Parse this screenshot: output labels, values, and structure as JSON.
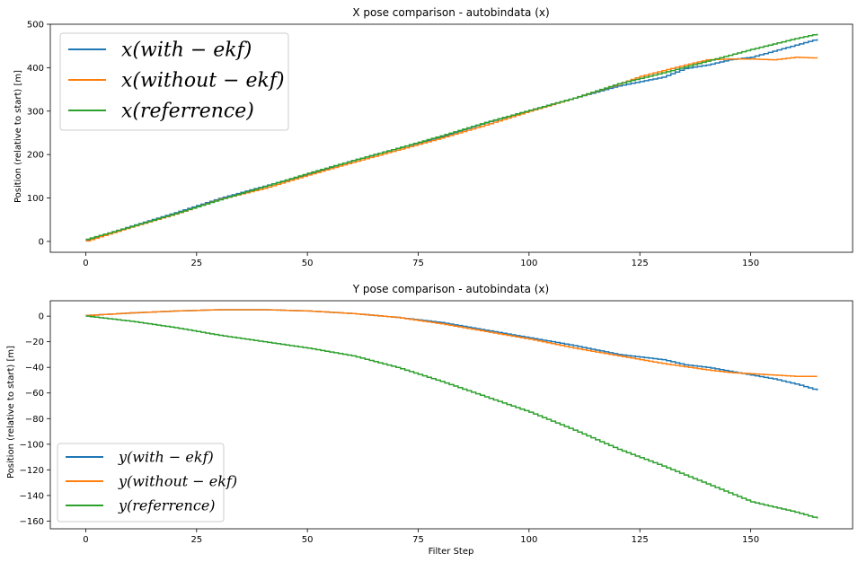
{
  "chart_data": [
    {
      "type": "line",
      "title": "X pose comparison - autobindata (x)",
      "xlabel": "",
      "ylabel": "Position (relative to start) [m]",
      "xlim": [
        -8,
        173
      ],
      "ylim": [
        -25,
        500
      ],
      "xticks": [
        0,
        25,
        50,
        75,
        100,
        125,
        150
      ],
      "yticks": [
        0,
        100,
        200,
        300,
        400,
        500
      ],
      "legend_position": "upper-left",
      "series": [
        {
          "name": "x(with − ekf)",
          "color": "#1f77b4",
          "x": [
            0,
            10,
            20,
            30,
            40,
            50,
            60,
            70,
            80,
            90,
            100,
            110,
            120,
            130,
            135,
            140,
            145,
            150,
            155,
            160,
            165
          ],
          "y": [
            3,
            35,
            66,
            99,
            127,
            155,
            186,
            214,
            241,
            273,
            302,
            330,
            358,
            378,
            398,
            406,
            418,
            424,
            438,
            452,
            466
          ]
        },
        {
          "name": "x(without − ekf)",
          "color": "#ff7f0e",
          "x": [
            0,
            10,
            20,
            30,
            40,
            50,
            60,
            70,
            80,
            90,
            100,
            110,
            120,
            125,
            130,
            135,
            140,
            145,
            150,
            155,
            160,
            165
          ],
          "y": [
            1,
            33,
            63,
            97,
            122,
            153,
            182,
            210,
            238,
            268,
            300,
            330,
            362,
            380,
            393,
            406,
            418,
            420,
            420,
            418,
            424,
            422
          ]
        },
        {
          "name": "x(referrence)",
          "color": "#2ca02c",
          "x": [
            0,
            10,
            20,
            30,
            40,
            50,
            60,
            70,
            80,
            90,
            100,
            110,
            120,
            130,
            140,
            150,
            160,
            165
          ],
          "y": [
            5,
            34,
            64,
            96,
            126,
            157,
            186,
            214,
            243,
            274,
            302,
            330,
            363,
            388,
            415,
            442,
            467,
            478
          ]
        }
      ],
      "legend_labels": [
        "x(with − ekf)",
        "x(without − ekf)",
        "x(referrence)"
      ]
    },
    {
      "type": "line",
      "title": "Y pose comparison - autobindata (x)",
      "xlabel": "Filter Step",
      "ylabel": "Position (relative to start) [m]",
      "xlim": [
        -8,
        173
      ],
      "ylim": [
        -166,
        12
      ],
      "xticks": [
        0,
        25,
        50,
        75,
        100,
        125,
        150
      ],
      "yticks": [
        0,
        -20,
        -40,
        -60,
        -80,
        -100,
        -120,
        -140,
        -160
      ],
      "legend_position": "lower-left",
      "series": [
        {
          "name": "y(with − ekf)",
          "color": "#1f77b4",
          "x": [
            0,
            10,
            20,
            30,
            40,
            50,
            60,
            70,
            80,
            90,
            100,
            110,
            120,
            130,
            135,
            140,
            145,
            150,
            155,
            160,
            165
          ],
          "y": [
            0.5,
            2.5,
            4,
            5,
            5,
            4,
            2,
            -1,
            -5,
            -11,
            -17,
            -23,
            -30,
            -34,
            -38,
            -40,
            -43,
            -46,
            -49,
            -53,
            -58
          ]
        },
        {
          "name": "y(without − ekf)",
          "color": "#ff7f0e",
          "x": [
            0,
            10,
            20,
            30,
            40,
            50,
            60,
            70,
            80,
            90,
            100,
            110,
            120,
            130,
            140,
            145,
            150,
            155,
            160,
            165
          ],
          "y": [
            0.5,
            2.5,
            4,
            5,
            5,
            4,
            2,
            -1,
            -6,
            -12,
            -18,
            -25,
            -31,
            -37,
            -42,
            -44,
            -45,
            -46,
            -47,
            -47
          ]
        },
        {
          "name": "y(referrence)",
          "color": "#2ca02c",
          "x": [
            0,
            10,
            20,
            30,
            40,
            50,
            60,
            70,
            80,
            90,
            100,
            110,
            120,
            130,
            140,
            150,
            160,
            165
          ],
          "y": [
            0,
            -4,
            -9,
            -15,
            -20,
            -25,
            -31,
            -40,
            -51,
            -63,
            -75,
            -89,
            -104,
            -117,
            -131,
            -145,
            -153,
            -158
          ]
        }
      ],
      "legend_labels": [
        "y(with − ekf)",
        "y(without − ekf)",
        "y(referrence)"
      ]
    }
  ]
}
